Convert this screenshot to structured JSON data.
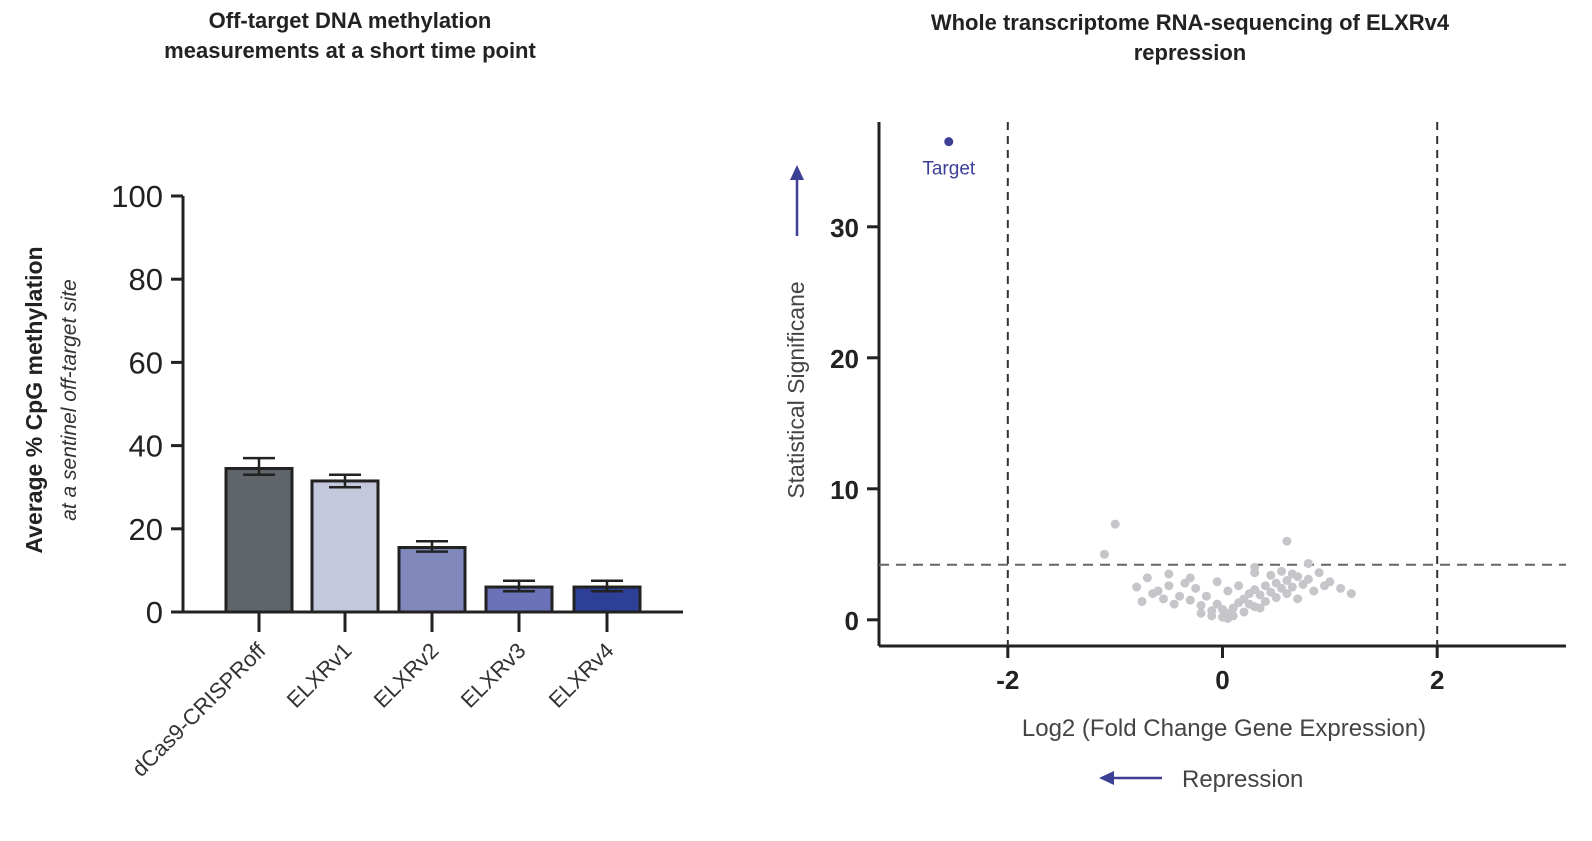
{
  "chart_data": [
    {
      "type": "bar",
      "title_lines": [
        "Off-target DNA methylation",
        "measurements at a short time point"
      ],
      "ylabel": "Average % CpG methylation",
      "ylabel_sub": "at a sentinel off-target site",
      "xlabel": "",
      "ylim": [
        0,
        100
      ],
      "yticks": [
        0,
        20,
        40,
        60,
        80,
        100
      ],
      "categories": [
        "dCas9-CRISPRoff",
        "ELXRv1",
        "ELXRv2",
        "ELXRv3",
        "ELXRv4"
      ],
      "values": [
        34.5,
        31.5,
        15.5,
        6,
        6
      ],
      "error_upper": [
        37,
        33,
        17,
        7.5,
        7.5
      ],
      "error_lower": [
        33,
        30,
        14.5,
        5,
        5
      ],
      "colors": [
        "#5f656b",
        "#c4c8dc",
        "#8088bc",
        "#6a73b8",
        "#2d3f96"
      ],
      "grid": false,
      "legend": "none"
    },
    {
      "type": "scatter",
      "title_lines": [
        "Whole transcriptome RNA-sequencing of ELXRv4",
        "repression"
      ],
      "xlabel": "Log2 (Fold Change Gene Expression)",
      "ylabel": "Statistical Significane",
      "xlim": [
        -3.2,
        3.2
      ],
      "ylim": [
        -2,
        38
      ],
      "xticks": [
        -2,
        0,
        2
      ],
      "yticks": [
        0,
        10,
        20,
        30
      ],
      "threshold_y": 4.2,
      "threshold_x": [
        -2,
        2
      ],
      "target_point": {
        "x": -2.55,
        "y": 36.5,
        "label": "Target"
      },
      "repression_label": "Repression",
      "point_color": "#c6c6ca",
      "target_color": "#3b3f95",
      "points": [
        {
          "x": -1.0,
          "y": 7.3
        },
        {
          "x": -1.1,
          "y": 5.0
        },
        {
          "x": 0.6,
          "y": 6.0
        },
        {
          "x": 0.8,
          "y": 4.3
        },
        {
          "x": 0.3,
          "y": 4.0
        },
        {
          "x": 0.9,
          "y": 3.6
        },
        {
          "x": 1.0,
          "y": 2.9
        },
        {
          "x": 1.2,
          "y": 2.0
        },
        {
          "x": 1.1,
          "y": 2.4
        },
        {
          "x": -0.7,
          "y": 3.2
        },
        {
          "x": -0.6,
          "y": 2.2
        },
        {
          "x": -0.5,
          "y": 2.6
        },
        {
          "x": -0.4,
          "y": 1.8
        },
        {
          "x": -0.3,
          "y": 1.5
        },
        {
          "x": -0.2,
          "y": 1.1
        },
        {
          "x": -0.1,
          "y": 0.7
        },
        {
          "x": 0.0,
          "y": 0.2
        },
        {
          "x": 0.05,
          "y": 0.5
        },
        {
          "x": 0.1,
          "y": 0.9
        },
        {
          "x": 0.15,
          "y": 1.3
        },
        {
          "x": 0.2,
          "y": 1.6
        },
        {
          "x": 0.25,
          "y": 2.0
        },
        {
          "x": 0.3,
          "y": 2.3
        },
        {
          "x": 0.35,
          "y": 1.9
        },
        {
          "x": 0.4,
          "y": 2.6
        },
        {
          "x": 0.45,
          "y": 2.1
        },
        {
          "x": 0.5,
          "y": 2.8
        },
        {
          "x": 0.55,
          "y": 2.4
        },
        {
          "x": 0.6,
          "y": 3.0
        },
        {
          "x": 0.65,
          "y": 2.5
        },
        {
          "x": 0.7,
          "y": 3.3
        },
        {
          "x": 0.75,
          "y": 2.7
        },
        {
          "x": 0.8,
          "y": 3.1
        },
        {
          "x": -0.35,
          "y": 2.8
        },
        {
          "x": -0.25,
          "y": 2.4
        },
        {
          "x": -0.15,
          "y": 1.8
        },
        {
          "x": -0.05,
          "y": 1.2
        },
        {
          "x": 0.0,
          "y": 0.8
        },
        {
          "x": 0.1,
          "y": 0.3
        },
        {
          "x": 0.2,
          "y": 0.6
        },
        {
          "x": 0.3,
          "y": 1.0
        },
        {
          "x": 0.4,
          "y": 1.4
        },
        {
          "x": 0.5,
          "y": 1.7
        },
        {
          "x": 0.6,
          "y": 2.0
        },
        {
          "x": -0.45,
          "y": 1.2
        },
        {
          "x": -0.55,
          "y": 1.6
        },
        {
          "x": -0.65,
          "y": 2.0
        },
        {
          "x": -0.2,
          "y": 0.5
        },
        {
          "x": -0.1,
          "y": 0.3
        },
        {
          "x": 0.05,
          "y": 0.1
        },
        {
          "x": 0.25,
          "y": 1.2
        },
        {
          "x": 0.35,
          "y": 0.9
        },
        {
          "x": 0.45,
          "y": 3.4
        },
        {
          "x": 0.55,
          "y": 3.7
        },
        {
          "x": 0.65,
          "y": 3.5
        },
        {
          "x": -0.5,
          "y": 3.5
        },
        {
          "x": -0.3,
          "y": 3.2
        },
        {
          "x": 0.15,
          "y": 2.6
        },
        {
          "x": 0.7,
          "y": 1.6
        },
        {
          "x": 0.85,
          "y": 2.2
        },
        {
          "x": 0.95,
          "y": 2.6
        },
        {
          "x": -0.8,
          "y": 2.5
        },
        {
          "x": -0.75,
          "y": 1.4
        },
        {
          "x": 0.3,
          "y": 3.6
        },
        {
          "x": 0.05,
          "y": 2.2
        },
        {
          "x": -0.05,
          "y": 2.9
        }
      ]
    }
  ]
}
